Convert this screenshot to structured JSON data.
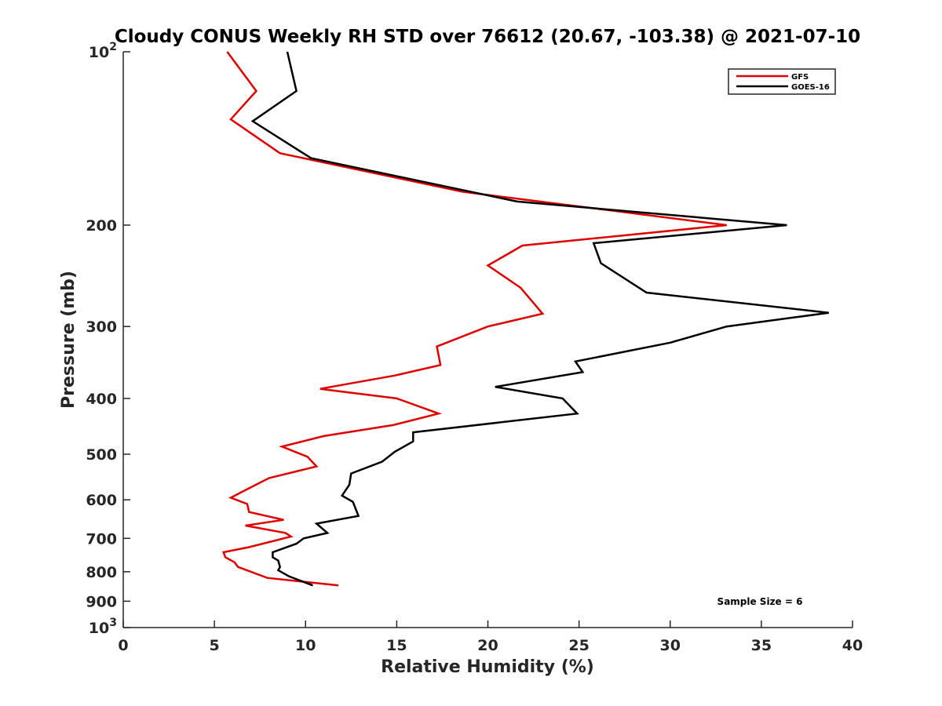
{
  "chart_data": {
    "type": "line",
    "title": "Cloudy CONUS Weekly RH STD over 76612 (20.67, -103.38) @ 2021-07-10",
    "xlabel": "Relative Humidity (%)",
    "ylabel": "Pressure (mb)",
    "xlim": [
      0,
      40
    ],
    "ylim": [
      100,
      1000
    ],
    "yscale": "log",
    "yreverse": true,
    "x_ticks": [
      {
        "value": 0,
        "label": "0"
      },
      {
        "value": 5,
        "label": "5"
      },
      {
        "value": 10,
        "label": "10"
      },
      {
        "value": 15,
        "label": "15"
      },
      {
        "value": 20,
        "label": "20"
      },
      {
        "value": 25,
        "label": "25"
      },
      {
        "value": 30,
        "label": "30"
      },
      {
        "value": 35,
        "label": "35"
      },
      {
        "value": 40,
        "label": "40"
      }
    ],
    "y_ticks": [
      {
        "value": 100,
        "base": "10",
        "exp": "2"
      },
      {
        "value": 200,
        "base": "200",
        "exp": ""
      },
      {
        "value": 300,
        "base": "300",
        "exp": ""
      },
      {
        "value": 400,
        "base": "400",
        "exp": ""
      },
      {
        "value": 500,
        "base": "500",
        "exp": ""
      },
      {
        "value": 600,
        "base": "600",
        "exp": ""
      },
      {
        "value": 700,
        "base": "700",
        "exp": ""
      },
      {
        "value": 800,
        "base": "800",
        "exp": ""
      },
      {
        "value": 900,
        "base": "900",
        "exp": ""
      },
      {
        "value": 1000,
        "base": "10",
        "exp": "3"
      }
    ],
    "legend_position": "top-right",
    "annotation": "Sample Size = 6",
    "series": [
      {
        "name": "GFS",
        "color": "#e00000",
        "points": [
          [
            5.7,
            100
          ],
          [
            7.3,
            117
          ],
          [
            5.9,
            131
          ],
          [
            8.6,
            150
          ],
          [
            18.6,
            175
          ],
          [
            33.1,
            200
          ],
          [
            21.9,
            217
          ],
          [
            20.0,
            235
          ],
          [
            21.8,
            257
          ],
          [
            23.0,
            285
          ],
          [
            20.0,
            300
          ],
          [
            17.2,
            325
          ],
          [
            17.4,
            350
          ],
          [
            14.9,
            365
          ],
          [
            10.8,
            385
          ],
          [
            15.0,
            400
          ],
          [
            17.3,
            425
          ],
          [
            14.8,
            445
          ],
          [
            11.0,
            465
          ],
          [
            8.7,
            485
          ],
          [
            10.1,
            505
          ],
          [
            10.6,
            525
          ],
          [
            8.0,
            550
          ],
          [
            6.8,
            575
          ],
          [
            5.9,
            595
          ],
          [
            6.8,
            610
          ],
          [
            6.9,
            630
          ],
          [
            8.8,
            650
          ],
          [
            6.7,
            665
          ],
          [
            8.9,
            685
          ],
          [
            9.2,
            695
          ],
          [
            6.9,
            725
          ],
          [
            5.5,
            740
          ],
          [
            5.6,
            755
          ],
          [
            6.1,
            770
          ],
          [
            6.3,
            785
          ],
          [
            7.9,
            820
          ],
          [
            11.8,
            845
          ]
        ]
      },
      {
        "name": "GOES-16",
        "color": "#000000",
        "points": [
          [
            9.0,
            100
          ],
          [
            9.5,
            117
          ],
          [
            7.1,
            132
          ],
          [
            10.3,
            153
          ],
          [
            21.6,
            182
          ],
          [
            36.4,
            200
          ],
          [
            25.8,
            215
          ],
          [
            26.2,
            233
          ],
          [
            28.7,
            262
          ],
          [
            38.7,
            284
          ],
          [
            33.1,
            300
          ],
          [
            30.0,
            320
          ],
          [
            24.8,
            345
          ],
          [
            25.2,
            360
          ],
          [
            20.4,
            382
          ],
          [
            24.1,
            400
          ],
          [
            24.9,
            425
          ],
          [
            15.9,
            458
          ],
          [
            15.9,
            475
          ],
          [
            14.9,
            495
          ],
          [
            14.2,
            515
          ],
          [
            12.5,
            540
          ],
          [
            12.4,
            565
          ],
          [
            12.0,
            590
          ],
          [
            12.6,
            605
          ],
          [
            12.9,
            640
          ],
          [
            10.6,
            660
          ],
          [
            11.2,
            685
          ],
          [
            9.9,
            700
          ],
          [
            9.5,
            715
          ],
          [
            8.2,
            740
          ],
          [
            8.2,
            755
          ],
          [
            8.5,
            765
          ],
          [
            8.6,
            785
          ],
          [
            8.5,
            795
          ],
          [
            9.1,
            815
          ],
          [
            10.4,
            845
          ]
        ]
      }
    ]
  }
}
